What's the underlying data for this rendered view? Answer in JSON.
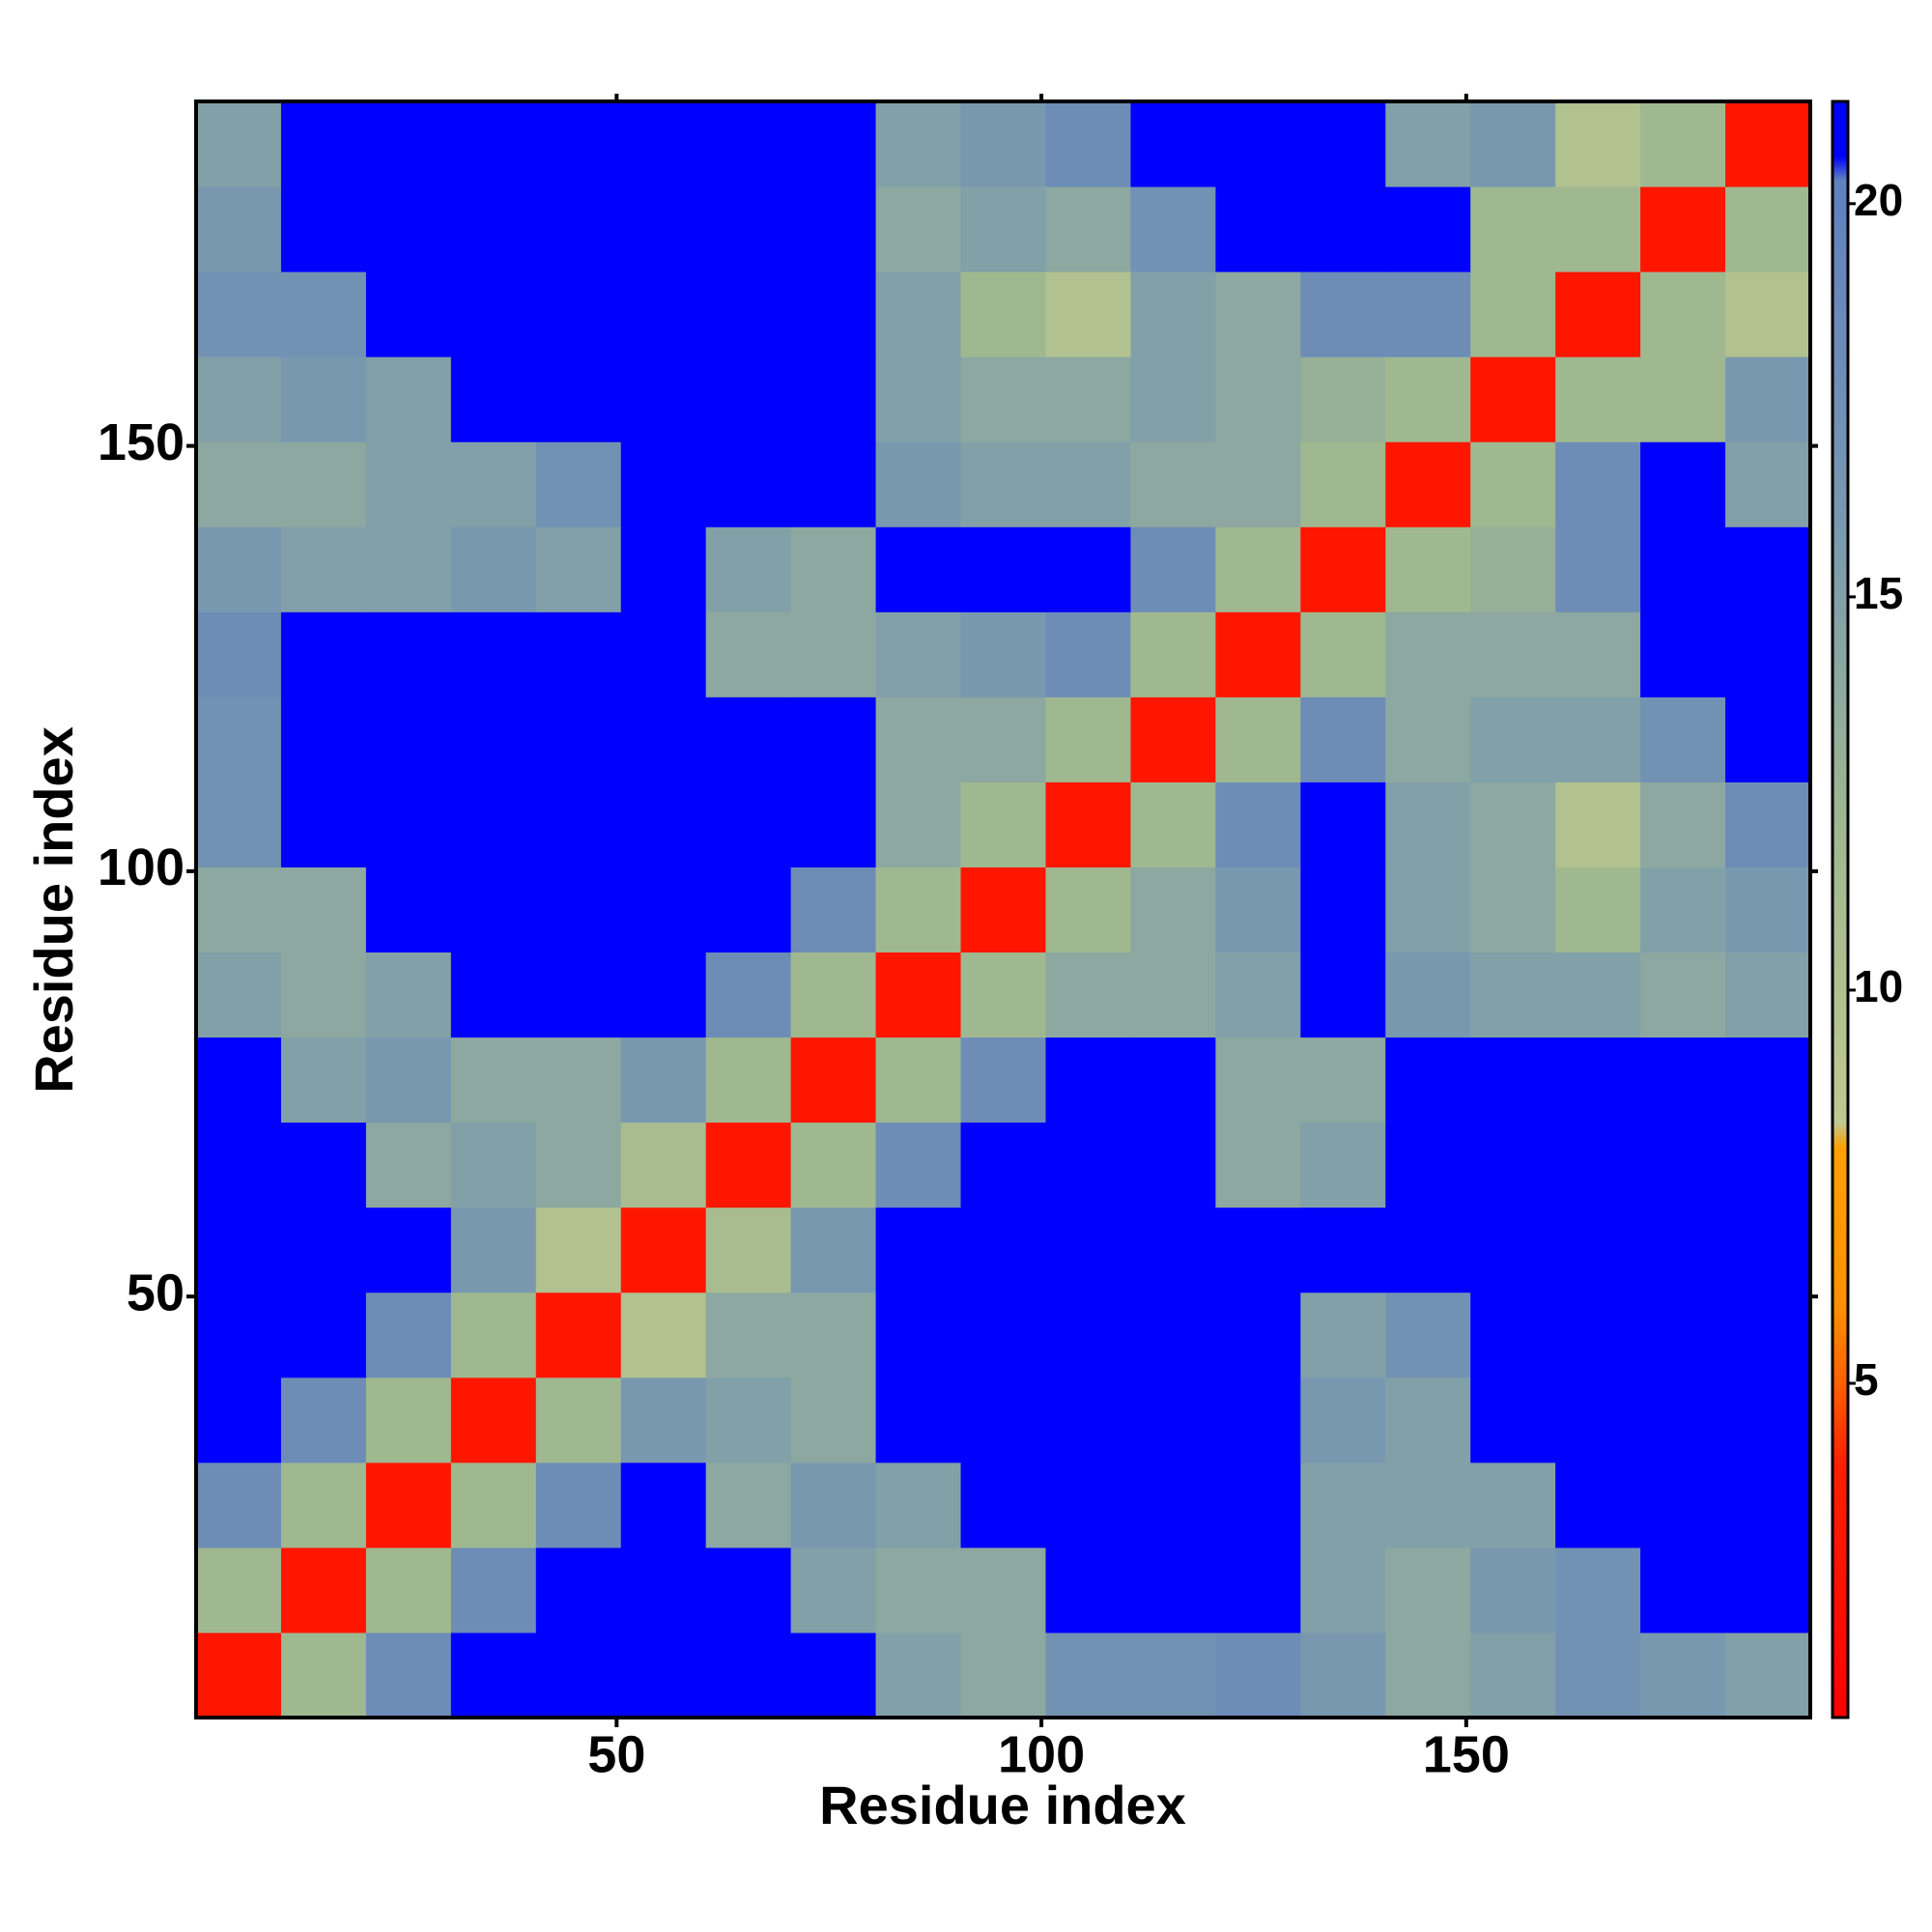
{
  "chart_data": {
    "type": "heatmap",
    "x_label": "Residue index",
    "y_label": "Residue index",
    "xlim": [
      0.5,
      190.5
    ],
    "ylim": [
      0.5,
      190.5
    ],
    "xticks": [
      50,
      100,
      150
    ],
    "yticks": [
      50,
      100,
      150
    ],
    "xbins": [
      0.5,
      10.5,
      20.5,
      30.5,
      40.5,
      50.5,
      60.5,
      70.5,
      80.5,
      90.5,
      100.5,
      110.5,
      120.5,
      130.5,
      140.5,
      150.5,
      160.5,
      170.5,
      180.5,
      190.5
    ],
    "ybins": [
      0.5,
      10.5,
      20.5,
      30.5,
      40.5,
      50.5,
      60.5,
      70.5,
      80.5,
      90.5,
      100.5,
      110.5,
      120.5,
      130.5,
      140.5,
      150.5,
      160.5,
      170.5,
      180.5,
      190.5
    ],
    "zlim": [
      0.75,
      21.3
    ],
    "zticks": [
      5,
      10,
      15,
      20
    ],
    "colorscale": [
      [
        0.75,
        "#ff0000"
      ],
      [
        4,
        "#ff2000"
      ],
      [
        5,
        "#ff6000"
      ],
      [
        6,
        "#ff9000"
      ],
      [
        8,
        "#ffa000"
      ],
      [
        8.3,
        "#c0c890"
      ],
      [
        12,
        "#a0b890"
      ],
      [
        16,
        "#7898b0"
      ],
      [
        20.3,
        "#6080c0"
      ],
      [
        20.6,
        "#0000ff"
      ],
      [
        21.3,
        "#0000ff"
      ]
    ],
    "z": [
      [
        3,
        12,
        18,
        21,
        21,
        21,
        21,
        21,
        15,
        14,
        17,
        17,
        18,
        16,
        14,
        15,
        17,
        16,
        15
      ],
      [
        12,
        3,
        12,
        18,
        21,
        21,
        21,
        15,
        14,
        14,
        21,
        21,
        21,
        15,
        14,
        16,
        17,
        21,
        21
      ],
      [
        18,
        12,
        3,
        12,
        18,
        21,
        14,
        16,
        15,
        21,
        21,
        21,
        21,
        15,
        15,
        15,
        21,
        21,
        21
      ],
      [
        21,
        18,
        12,
        3,
        12,
        16,
        15,
        14,
        21,
        21,
        21,
        21,
        21,
        16,
        15,
        21,
        21,
        21,
        21
      ],
      [
        21,
        21,
        18,
        12,
        3,
        10,
        14,
        14,
        21,
        21,
        21,
        21,
        21,
        15,
        17,
        21,
        21,
        21,
        21
      ],
      [
        21,
        21,
        21,
        16,
        10,
        3,
        11,
        16,
        21,
        21,
        21,
        21,
        21,
        21,
        21,
        21,
        21,
        21,
        21
      ],
      [
        21,
        21,
        14,
        15,
        14,
        11,
        3,
        12,
        18,
        21,
        21,
        21,
        14,
        15,
        21,
        21,
        21,
        21,
        21
      ],
      [
        21,
        15,
        16,
        14,
        14,
        16,
        12,
        3,
        12,
        18,
        21,
        21,
        14,
        14,
        21,
        21,
        21,
        21,
        21
      ],
      [
        15,
        14,
        15,
        21,
        21,
        21,
        18,
        12,
        3,
        12,
        14,
        14,
        15,
        21,
        16,
        15,
        15,
        14,
        15
      ],
      [
        14,
        14,
        21,
        21,
        21,
        21,
        21,
        18,
        12,
        3,
        12,
        14,
        16,
        21,
        15,
        14,
        12,
        15,
        16
      ],
      [
        17,
        21,
        21,
        21,
        21,
        21,
        21,
        21,
        14,
        12,
        3,
        12,
        18,
        21,
        15,
        14,
        10,
        14,
        18
      ],
      [
        17,
        21,
        21,
        21,
        21,
        21,
        21,
        21,
        14,
        14,
        12,
        3,
        12,
        18,
        14,
        15,
        15,
        17,
        21
      ],
      [
        18,
        21,
        21,
        21,
        21,
        21,
        14,
        14,
        15,
        16,
        18,
        12,
        3,
        12,
        14,
        14,
        14,
        21,
        21
      ],
      [
        16,
        15,
        15,
        16,
        15,
        21,
        15,
        14,
        21,
        21,
        21,
        18,
        12,
        3,
        12,
        13,
        18,
        21,
        21
      ],
      [
        14,
        14,
        15,
        15,
        17,
        21,
        21,
        21,
        16,
        15,
        15,
        14,
        14,
        12,
        3,
        12,
        18,
        21,
        15
      ],
      [
        15,
        16,
        15,
        21,
        21,
        21,
        21,
        21,
        15,
        14,
        14,
        15,
        14,
        13,
        12,
        3,
        12,
        12,
        16
      ],
      [
        17,
        17,
        21,
        21,
        21,
        21,
        21,
        21,
        15,
        12,
        10,
        15,
        14,
        18,
        18,
        12,
        3,
        12,
        10
      ],
      [
        16,
        21,
        21,
        21,
        21,
        21,
        21,
        21,
        14,
        15,
        14,
        17,
        21,
        21,
        21,
        12,
        12,
        3,
        12
      ],
      [
        15,
        21,
        21,
        21,
        21,
        21,
        21,
        21,
        15,
        16,
        18,
        21,
        21,
        21,
        15,
        16,
        10,
        12,
        3
      ]
    ]
  }
}
